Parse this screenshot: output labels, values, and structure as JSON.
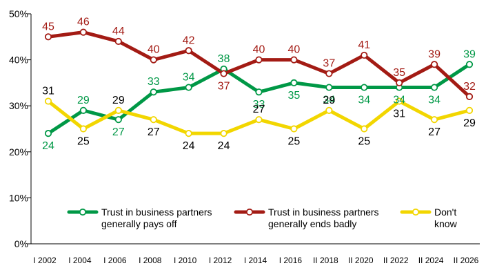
{
  "chart_data": {
    "type": "line",
    "title": "",
    "xlabel": "",
    "ylabel": "",
    "categories": [
      "I 2002",
      "I 2004",
      "I 2006",
      "I 2008",
      "I 2010",
      "I 2012",
      "I 2014",
      "I 2016",
      "II 2018",
      "II 2020",
      "II 2022",
      "II 2024",
      "II 2026"
    ],
    "ylim": [
      0,
      50
    ],
    "yticks": [
      0,
      10,
      20,
      30,
      40,
      50
    ],
    "ytick_labels": [
      "0%",
      "10%",
      "20%",
      "30%",
      "40%",
      "50%"
    ],
    "grid": false,
    "legend_position": "bottom-inside",
    "series": [
      {
        "key": "payoff",
        "name": "Trust in business partners generally pays off",
        "legend_lines": [
          "Trust in business partners",
          "generally pays off"
        ],
        "color": "#009846",
        "values": [
          24,
          29,
          27,
          33,
          34,
          38,
          33,
          35,
          34,
          34,
          34,
          34,
          39
        ],
        "labels": [
          "24",
          "29",
          "27",
          "33",
          "34",
          "38",
          "33",
          "35",
          "34",
          "34",
          "34",
          "34",
          "39"
        ]
      },
      {
        "key": "badly",
        "name": "Trust in business partners generally ends badly",
        "legend_lines": [
          "Trust in business partners",
          "generally ends badly"
        ],
        "color": "#a31b14",
        "values": [
          45,
          46,
          44,
          40,
          42,
          37,
          40,
          40,
          37,
          41,
          35,
          39,
          32
        ],
        "labels": [
          "45",
          "46",
          "44",
          "40",
          "42",
          "37",
          "40",
          "40",
          "37",
          "41",
          "35",
          "39",
          "32"
        ]
      },
      {
        "key": "dontknow",
        "name": "Don't know",
        "legend_lines": [
          "Don't",
          "know"
        ],
        "color": "#f2d600",
        "values": [
          31,
          25,
          29,
          27,
          24,
          24,
          27,
          25,
          29,
          25,
          31,
          27,
          29
        ],
        "labels": [
          "31",
          "25",
          "29",
          "27",
          "24",
          "24",
          "27",
          "25",
          "29",
          "25",
          "31",
          "27",
          "29"
        ]
      }
    ]
  }
}
